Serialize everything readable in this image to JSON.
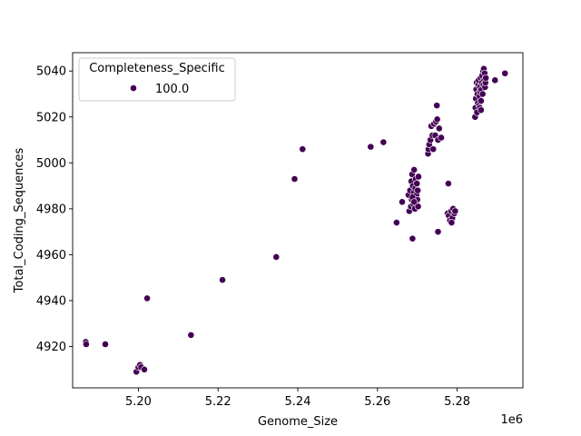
{
  "chart_data": {
    "type": "scatter",
    "xlabel": "Genome_Size",
    "ylabel": "Total_Coding_Sequences",
    "x_offset_label": "1e6",
    "xlim": [
      5.1835,
      5.2965
    ],
    "ylim": [
      4902,
      5048
    ],
    "x_ticks": [
      5.2,
      5.22,
      5.24,
      5.26,
      5.28
    ],
    "x_tick_labels": [
      "5.20",
      "5.22",
      "5.24",
      "5.26",
      "5.28"
    ],
    "y_ticks": [
      4920,
      4940,
      4960,
      4980,
      5000,
      5020,
      5040
    ],
    "y_tick_labels": [
      "4920",
      "4940",
      "4960",
      "4980",
      "5000",
      "5020",
      "5040"
    ],
    "grid": false,
    "legend": {
      "title": "Completeness_Specific",
      "placement": "top-left",
      "entries": [
        {
          "label": "100.0",
          "color": "#440154"
        }
      ]
    },
    "marker_color": "#440154",
    "marker_edge_color": "#ffffff",
    "series": [
      {
        "label": "100.0",
        "points": [
          [
            5.1868,
            4922
          ],
          [
            5.1869,
            4921
          ],
          [
            5.1917,
            4921
          ],
          [
            5.1995,
            4909
          ],
          [
            5.2,
            4911
          ],
          [
            5.2004,
            4912
          ],
          [
            5.2007,
            4911
          ],
          [
            5.2015,
            4910
          ],
          [
            5.2022,
            4941
          ],
          [
            5.2132,
            4925
          ],
          [
            5.2211,
            4949
          ],
          [
            5.2346,
            4959
          ],
          [
            5.2392,
            4993
          ],
          [
            5.2412,
            5006
          ],
          [
            5.2583,
            5007
          ],
          [
            5.2615,
            5009
          ],
          [
            5.2648,
            4974
          ],
          [
            5.2662,
            4983
          ],
          [
            5.2678,
            4986
          ],
          [
            5.268,
            4979
          ],
          [
            5.2682,
            4988
          ],
          [
            5.2684,
            4981
          ],
          [
            5.2685,
            4992
          ],
          [
            5.2686,
            4984
          ],
          [
            5.2687,
            4995
          ],
          [
            5.2688,
            4967
          ],
          [
            5.2689,
            4990
          ],
          [
            5.269,
            4982
          ],
          [
            5.2691,
            4987
          ],
          [
            5.2692,
            4997
          ],
          [
            5.2693,
            4985
          ],
          [
            5.2694,
            4980
          ],
          [
            5.2695,
            4989
          ],
          [
            5.2696,
            4993
          ],
          [
            5.2697,
            4983
          ],
          [
            5.2698,
            4986
          ],
          [
            5.2699,
            4991
          ],
          [
            5.27,
            4984
          ],
          [
            5.2701,
            4988
          ],
          [
            5.2702,
            4981
          ],
          [
            5.2703,
            4994
          ],
          [
            5.2688,
            4985
          ],
          [
            5.2692,
            4983
          ],
          [
            5.2727,
            5004
          ],
          [
            5.2728,
            5006
          ],
          [
            5.273,
            5008
          ],
          [
            5.2733,
            5010
          ],
          [
            5.2735,
            5016
          ],
          [
            5.2738,
            5012
          ],
          [
            5.274,
            5006
          ],
          [
            5.2742,
            5017
          ],
          [
            5.2745,
            5012
          ],
          [
            5.2747,
            5018
          ],
          [
            5.2749,
            5025
          ],
          [
            5.275,
            5019
          ],
          [
            5.2752,
            5010
          ],
          [
            5.2755,
            5015
          ],
          [
            5.276,
            5011
          ],
          [
            5.2752,
            4970
          ],
          [
            5.2778,
            4991
          ],
          [
            5.2776,
            4978
          ],
          [
            5.2779,
            4977
          ],
          [
            5.2782,
            4975
          ],
          [
            5.2785,
            4979
          ],
          [
            5.2788,
            4976
          ],
          [
            5.279,
            4980
          ],
          [
            5.2793,
            4978
          ],
          [
            5.2795,
            4979
          ],
          [
            5.2786,
            4974
          ],
          [
            5.2845,
            5020
          ],
          [
            5.2846,
            5024
          ],
          [
            5.2847,
            5028
          ],
          [
            5.2848,
            5032
          ],
          [
            5.2849,
            5035
          ],
          [
            5.285,
            5022
          ],
          [
            5.2851,
            5030
          ],
          [
            5.2852,
            5026
          ],
          [
            5.2853,
            5034
          ],
          [
            5.2854,
            5036
          ],
          [
            5.2855,
            5025
          ],
          [
            5.2856,
            5029
          ],
          [
            5.2857,
            5033
          ],
          [
            5.2858,
            5031
          ],
          [
            5.2859,
            5037
          ],
          [
            5.286,
            5027
          ],
          [
            5.2861,
            5032
          ],
          [
            5.2862,
            5035
          ],
          [
            5.2863,
            5038
          ],
          [
            5.2864,
            5030
          ],
          [
            5.2865,
            5040
          ],
          [
            5.2866,
            5034
          ],
          [
            5.2867,
            5041
          ],
          [
            5.2868,
            5036
          ],
          [
            5.2869,
            5039
          ],
          [
            5.287,
            5033
          ],
          [
            5.2871,
            5035
          ],
          [
            5.2872,
            5037
          ],
          [
            5.2857,
            5024
          ],
          [
            5.286,
            5023
          ],
          [
            5.2895,
            5036
          ],
          [
            5.292,
            5039
          ]
        ]
      }
    ]
  }
}
